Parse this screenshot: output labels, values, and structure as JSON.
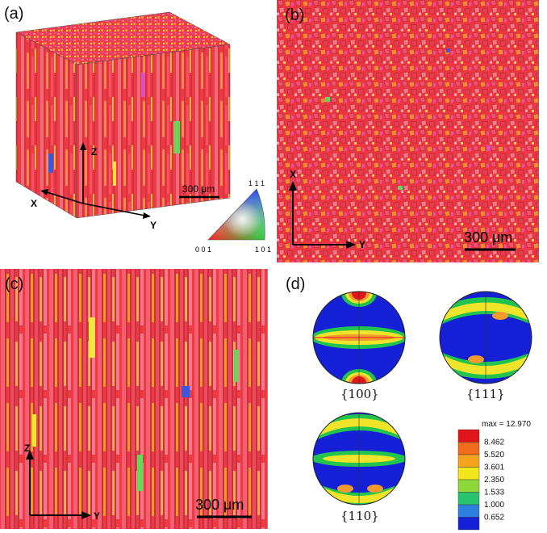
{
  "panels": {
    "a": {
      "label": "(a)",
      "axes": {
        "z": "Z",
        "x": "X",
        "y": "Y"
      },
      "scale_bar": "300 μm",
      "ipf_key": {
        "top": "1 1 1",
        "bottom_left": "0 0 1",
        "bottom_right": "1 0 1"
      }
    },
    "b": {
      "label": "(b)",
      "axes": {
        "vertical": "X",
        "horizontal": "Y"
      },
      "scale_bar": "300 μm"
    },
    "c": {
      "label": "(c)",
      "axes": {
        "vertical": "Z",
        "horizontal": "Y"
      },
      "scale_bar": "300 μm"
    },
    "d": {
      "label": "(d)",
      "pole_figures": [
        {
          "name": "{100}"
        },
        {
          "name": "{111}"
        },
        {
          "name": "{110}"
        }
      ],
      "legend": {
        "max_label": "max = 12.970",
        "levels": [
          "8.462",
          "5.520",
          "3.601",
          "2.350",
          "1.533",
          "1.000",
          "0.652"
        ],
        "colors": [
          "#e0141a",
          "#f26a1b",
          "#f5a31e",
          "#f2e51c",
          "#8fd83a",
          "#28c46d",
          "#2d7fe0",
          "#1620d6"
        ]
      }
    }
  },
  "colors": {
    "red": "#ef3340",
    "pink": "#f0507a",
    "orange": "#f7923a",
    "yellow": "#f4e63a",
    "green": "#6cd35c",
    "blue": "#3a57e0",
    "magenta": "#d84fd1",
    "pf_blue": "#1620d6",
    "pf_green": "#22c44f",
    "pf_yellow": "#f0e42a",
    "pf_orange": "#f39a2f",
    "pf_red": "#e0141a"
  }
}
